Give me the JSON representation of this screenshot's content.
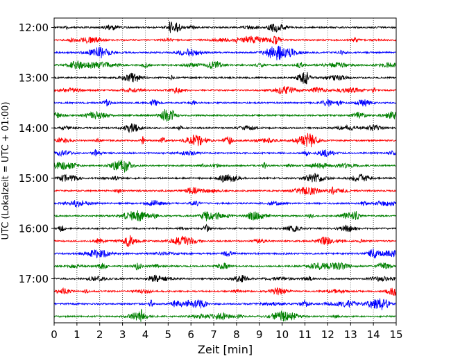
{
  "chart_data": {
    "type": "line",
    "title": "",
    "xlabel": "Zeit  [min]",
    "ylabel": "UTC (Lokalzeit = UTC + 01:00)",
    "xlim": [
      0,
      15
    ],
    "x_ticks": [
      "0",
      "1",
      "2",
      "3",
      "4",
      "5",
      "6",
      "7",
      "8",
      "9",
      "10",
      "11",
      "12",
      "13",
      "14",
      "15"
    ],
    "y_tick_labels": [
      "12:00",
      "13:00",
      "14:00",
      "15:00",
      "16:00",
      "17:00"
    ],
    "grid": "vertical dotted at each minute",
    "trace_interval_minutes": 15,
    "trace_colors": [
      "#000000",
      "#ff0000",
      "#0000ff",
      "#008000"
    ],
    "traces": [
      {
        "start": "12:00",
        "color": "#000000"
      },
      {
        "start": "12:15",
        "color": "#ff0000"
      },
      {
        "start": "12:30",
        "color": "#0000ff"
      },
      {
        "start": "12:45",
        "color": "#008000"
      },
      {
        "start": "13:00",
        "color": "#000000"
      },
      {
        "start": "13:15",
        "color": "#ff0000"
      },
      {
        "start": "13:30",
        "color": "#0000ff"
      },
      {
        "start": "13:45",
        "color": "#008000"
      },
      {
        "start": "14:00",
        "color": "#000000"
      },
      {
        "start": "14:15",
        "color": "#ff0000"
      },
      {
        "start": "14:30",
        "color": "#0000ff"
      },
      {
        "start": "14:45",
        "color": "#008000"
      },
      {
        "start": "15:00",
        "color": "#000000"
      },
      {
        "start": "15:15",
        "color": "#ff0000"
      },
      {
        "start": "15:30",
        "color": "#0000ff"
      },
      {
        "start": "15:45",
        "color": "#008000"
      },
      {
        "start": "16:00",
        "color": "#000000"
      },
      {
        "start": "16:15",
        "color": "#ff0000"
      },
      {
        "start": "16:30",
        "color": "#0000ff"
      },
      {
        "start": "16:45",
        "color": "#008000"
      },
      {
        "start": "17:00",
        "color": "#000000"
      },
      {
        "start": "17:15",
        "color": "#ff0000"
      },
      {
        "start": "17:30",
        "color": "#0000ff"
      },
      {
        "start": "17:45",
        "color": "#008000"
      }
    ]
  }
}
